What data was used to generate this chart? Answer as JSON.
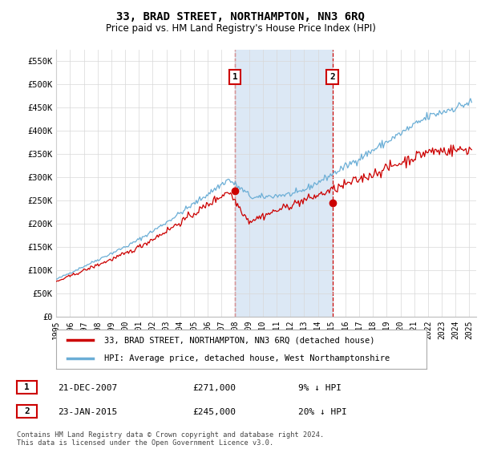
{
  "title": "33, BRAD STREET, NORTHAMPTON, NN3 6RQ",
  "subtitle": "Price paid vs. HM Land Registry's House Price Index (HPI)",
  "ylabel_ticks": [
    "£0",
    "£50K",
    "£100K",
    "£150K",
    "£200K",
    "£250K",
    "£300K",
    "£350K",
    "£400K",
    "£450K",
    "£500K",
    "£550K"
  ],
  "ylabel_values": [
    0,
    50000,
    100000,
    150000,
    200000,
    250000,
    300000,
    350000,
    400000,
    450000,
    500000,
    550000
  ],
  "x_start_year": 1995,
  "x_end_year": 2025,
  "hpi_color": "#6baed6",
  "price_color": "#cc0000",
  "marker1_year": 2007.97,
  "marker1_value": 271000,
  "marker2_year": 2015.06,
  "marker2_value": 245000,
  "vline_color": "#cc0000",
  "vshade_color": "#dce8f5",
  "legend_label_price": "33, BRAD STREET, NORTHAMPTON, NN3 6RQ (detached house)",
  "legend_label_hpi": "HPI: Average price, detached house, West Northamptonshire",
  "footer": "Contains HM Land Registry data © Crown copyright and database right 2024.\nThis data is licensed under the Open Government Licence v3.0.",
  "background_color": "#ffffff",
  "grid_color": "#d8d8d8"
}
